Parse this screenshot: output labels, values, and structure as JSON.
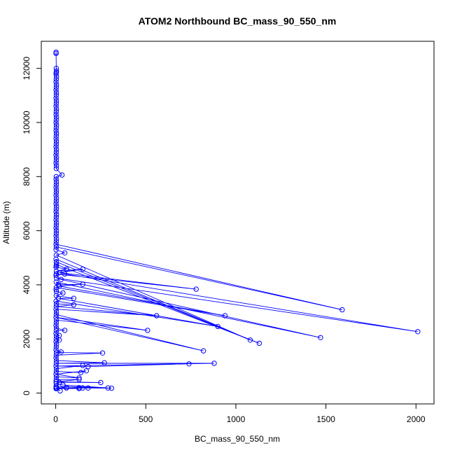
{
  "chart_data": {
    "type": "line",
    "title": "ATOM2 Northbound BC_mass_90_550_nm",
    "xlabel": "BC_mass_90_550_nm",
    "ylabel": "Altitude (m)",
    "xlim": [
      -80,
      2100
    ],
    "ylim": [
      -400,
      13000
    ],
    "xticks": [
      0,
      500,
      1000,
      1500,
      2000
    ],
    "yticks": [
      0,
      2000,
      4000,
      6000,
      8000,
      10000,
      12000
    ],
    "grid": false,
    "legend": "none",
    "series": [
      {
        "color": "#0000ff",
        "marker": "open-circle",
        "points": [
          [
            2,
            12600
          ],
          [
            2,
            12550
          ],
          [
            3,
            12000
          ],
          [
            4,
            11900
          ],
          [
            3,
            11850
          ],
          [
            2,
            11800
          ],
          [
            4,
            11700
          ],
          [
            3,
            11600
          ],
          [
            2,
            11500
          ],
          [
            4,
            11400
          ],
          [
            3,
            11300
          ],
          [
            2,
            11200
          ],
          [
            4,
            11100
          ],
          [
            3,
            11000
          ],
          [
            2,
            10900
          ],
          [
            4,
            10800
          ],
          [
            3,
            10700
          ],
          [
            2,
            10600
          ],
          [
            4,
            10500
          ],
          [
            3,
            10400
          ],
          [
            2,
            10300
          ],
          [
            4,
            10200
          ],
          [
            3,
            10100
          ],
          [
            2,
            10000
          ],
          [
            4,
            9900
          ],
          [
            3,
            9800
          ],
          [
            2,
            9700
          ],
          [
            4,
            9600
          ],
          [
            3,
            9500
          ],
          [
            2,
            9400
          ],
          [
            4,
            9300
          ],
          [
            3,
            9200
          ],
          [
            2,
            9100
          ],
          [
            4,
            9000
          ],
          [
            3,
            8900
          ],
          [
            2,
            8800
          ],
          [
            4,
            8700
          ],
          [
            3,
            8600
          ],
          [
            2,
            8500
          ],
          [
            4,
            8400
          ],
          [
            3,
            8300
          ],
          [
            35,
            8060
          ],
          [
            3,
            8000
          ],
          [
            2,
            7900
          ],
          [
            4,
            7800
          ],
          [
            3,
            7700
          ],
          [
            2,
            7600
          ],
          [
            4,
            7500
          ],
          [
            3,
            7400
          ],
          [
            2,
            7300
          ],
          [
            4,
            7200
          ],
          [
            3,
            7100
          ],
          [
            2,
            7000
          ],
          [
            4,
            6900
          ],
          [
            3,
            6800
          ],
          [
            2,
            6700
          ],
          [
            4,
            6600
          ],
          [
            3,
            6500
          ],
          [
            2,
            6400
          ],
          [
            4,
            6300
          ],
          [
            3,
            6200
          ],
          [
            2,
            6100
          ],
          [
            4,
            6000
          ],
          [
            3,
            5900
          ],
          [
            2,
            5800
          ],
          [
            4,
            5700
          ],
          [
            3,
            5600
          ],
          [
            2,
            5500
          ],
          [
            1590,
            3080
          ],
          [
            3,
            5400
          ],
          [
            2,
            5300
          ],
          [
            50,
            5180
          ],
          [
            3,
            5100
          ],
          [
            1080,
            1960
          ],
          [
            2,
            4950
          ],
          [
            3,
            4850
          ],
          [
            1130,
            1840
          ],
          [
            4,
            4750
          ],
          [
            3,
            4700
          ],
          [
            2,
            4650
          ],
          [
            60,
            4580
          ],
          [
            4,
            4500
          ],
          [
            150,
            4580
          ],
          [
            20,
            4450
          ],
          [
            780,
            3840
          ],
          [
            3,
            4400
          ],
          [
            2,
            4350
          ],
          [
            50,
            4400
          ],
          [
            2010,
            2270
          ],
          [
            4,
            4250
          ],
          [
            30,
            4200
          ],
          [
            1470,
            2050
          ],
          [
            3,
            4100
          ],
          [
            15,
            4000
          ],
          [
            150,
            4020
          ],
          [
            20,
            3950
          ],
          [
            940,
            2860
          ],
          [
            3,
            3900
          ],
          [
            2,
            3820
          ],
          [
            4,
            3750
          ],
          [
            40,
            3700
          ],
          [
            3,
            3600
          ],
          [
            100,
            3500
          ],
          [
            15,
            3500
          ],
          [
            900,
            2460
          ],
          [
            2,
            3400
          ],
          [
            4,
            3300
          ],
          [
            100,
            3260
          ],
          [
            3,
            3200
          ],
          [
            560,
            2860
          ],
          [
            2,
            3100
          ],
          [
            4,
            3000
          ],
          [
            3,
            2900
          ],
          [
            820,
            1560
          ],
          [
            2,
            2800
          ],
          [
            510,
            2320
          ],
          [
            4,
            2700
          ],
          [
            3,
            2600
          ],
          [
            2,
            2500
          ],
          [
            4,
            2400
          ],
          [
            50,
            2320
          ],
          [
            3,
            2300
          ],
          [
            2,
            2200
          ],
          [
            20,
            2130
          ],
          [
            4,
            2100
          ],
          [
            3,
            2000
          ],
          [
            20,
            1960
          ],
          [
            2,
            1900
          ],
          [
            4,
            1800
          ],
          [
            3,
            1700
          ],
          [
            2,
            1600
          ],
          [
            30,
            1520
          ],
          [
            4,
            1500
          ],
          [
            260,
            1480
          ],
          [
            3,
            1400
          ],
          [
            2,
            1300
          ],
          [
            4,
            1200
          ],
          [
            270,
            1120
          ],
          [
            3,
            1100
          ],
          [
            880,
            1100
          ],
          [
            2,
            1000
          ],
          [
            180,
            980
          ],
          [
            740,
            1080
          ],
          [
            150,
            1020
          ],
          [
            4,
            900
          ],
          [
            3,
            800
          ],
          [
            140,
            760
          ],
          [
            170,
            820
          ],
          [
            2,
            700
          ],
          [
            130,
            560
          ],
          [
            4,
            600
          ],
          [
            3,
            500
          ],
          [
            130,
            500
          ],
          [
            2,
            420
          ],
          [
            250,
            390
          ],
          [
            20,
            400
          ],
          [
            3,
            350
          ],
          [
            40,
            300
          ],
          [
            290,
            190
          ],
          [
            2,
            250
          ],
          [
            310,
            180
          ],
          [
            4,
            200
          ],
          [
            3,
            180
          ],
          [
            130,
            200
          ],
          [
            150,
            190
          ],
          [
            60,
            190
          ],
          [
            180,
            190
          ],
          [
            2,
            170
          ],
          [
            60,
            200
          ],
          [
            4,
            190
          ],
          [
            25,
            80
          ],
          [
            3,
            170
          ],
          [
            130,
            170
          ],
          [
            2,
            170
          ]
        ]
      }
    ]
  }
}
